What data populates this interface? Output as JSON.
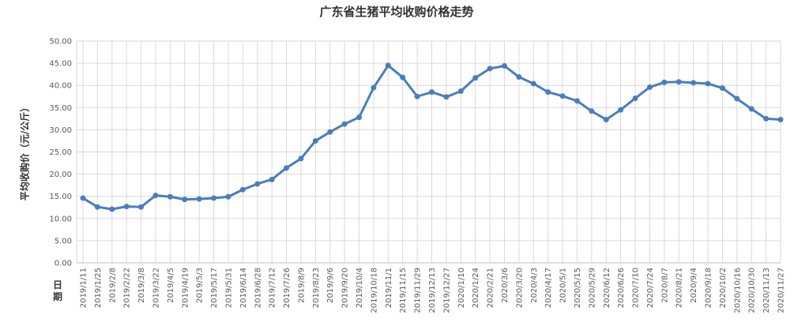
{
  "chart_data": {
    "type": "line",
    "title": "广东省生猪平均收购价格走势",
    "y_label": "平均收购价（元/公斤）",
    "x_label": "日期",
    "categories": [
      "2019/1/11",
      "2019/1/25",
      "2019/2/8",
      "2019/2/22",
      "2019/3/8",
      "2019/3/22",
      "2019/4/5",
      "2019/4/19",
      "2019/5/3",
      "2019/5/17",
      "2019/5/31",
      "2019/6/14",
      "2019/6/28",
      "2019/7/12",
      "2019/7/26",
      "2019/8/9",
      "2019/8/23",
      "2019/9/6",
      "2019/9/20",
      "2019/10/4",
      "2019/10/18",
      "2019/11/1",
      "2019/11/15",
      "2019/11/29",
      "2019/12/13",
      "2019/12/27",
      "2020/1/10",
      "2020/1/24",
      "2020/2/21",
      "2020/3/6",
      "2020/3/20",
      "2020/4/3",
      "2020/4/17",
      "2020/5/1",
      "2020/5/15",
      "2020/5/29",
      "2020/6/12",
      "2020/6/26",
      "2020/7/10",
      "2020/7/24",
      "2020/8/7",
      "2020/8/21",
      "2020/9/4",
      "2020/9/18",
      "2020/10/2",
      "2020/10/16",
      "2020/10/30",
      "2020/11/13",
      "2020/11/27"
    ],
    "values": [
      14.6,
      12.6,
      12.1,
      12.7,
      12.6,
      15.2,
      14.9,
      14.3,
      14.4,
      14.6,
      14.9,
      16.5,
      17.8,
      18.8,
      21.4,
      23.5,
      27.5,
      29.5,
      31.3,
      32.8,
      39.5,
      44.5,
      41.8,
      37.5,
      38.5,
      37.4,
      38.7,
      41.7,
      43.8,
      44.4,
      41.9,
      40.4,
      38.5,
      37.6,
      36.5,
      34.2,
      32.3,
      34.5,
      37.1,
      39.6,
      40.7,
      40.8,
      40.6,
      40.4,
      39.4,
      37.0,
      34.7,
      32.5,
      32.3
    ],
    "color": "#4a7ebb",
    "ylim": [
      0,
      50
    ],
    "yticks": [
      {
        "value": 0,
        "label": "0.00"
      },
      {
        "value": 5,
        "label": "5.00"
      },
      {
        "value": 10,
        "label": "10.00"
      },
      {
        "value": 15,
        "label": "15.00"
      },
      {
        "value": 20,
        "label": "20.00"
      },
      {
        "value": 25,
        "label": "25.00"
      },
      {
        "value": 30,
        "label": "30.00"
      },
      {
        "value": 35,
        "label": "35.00"
      },
      {
        "value": 40,
        "label": "40.00"
      },
      {
        "value": 45,
        "label": "45.00"
      },
      {
        "value": 50,
        "label": "50.00"
      }
    ],
    "grid": true
  }
}
